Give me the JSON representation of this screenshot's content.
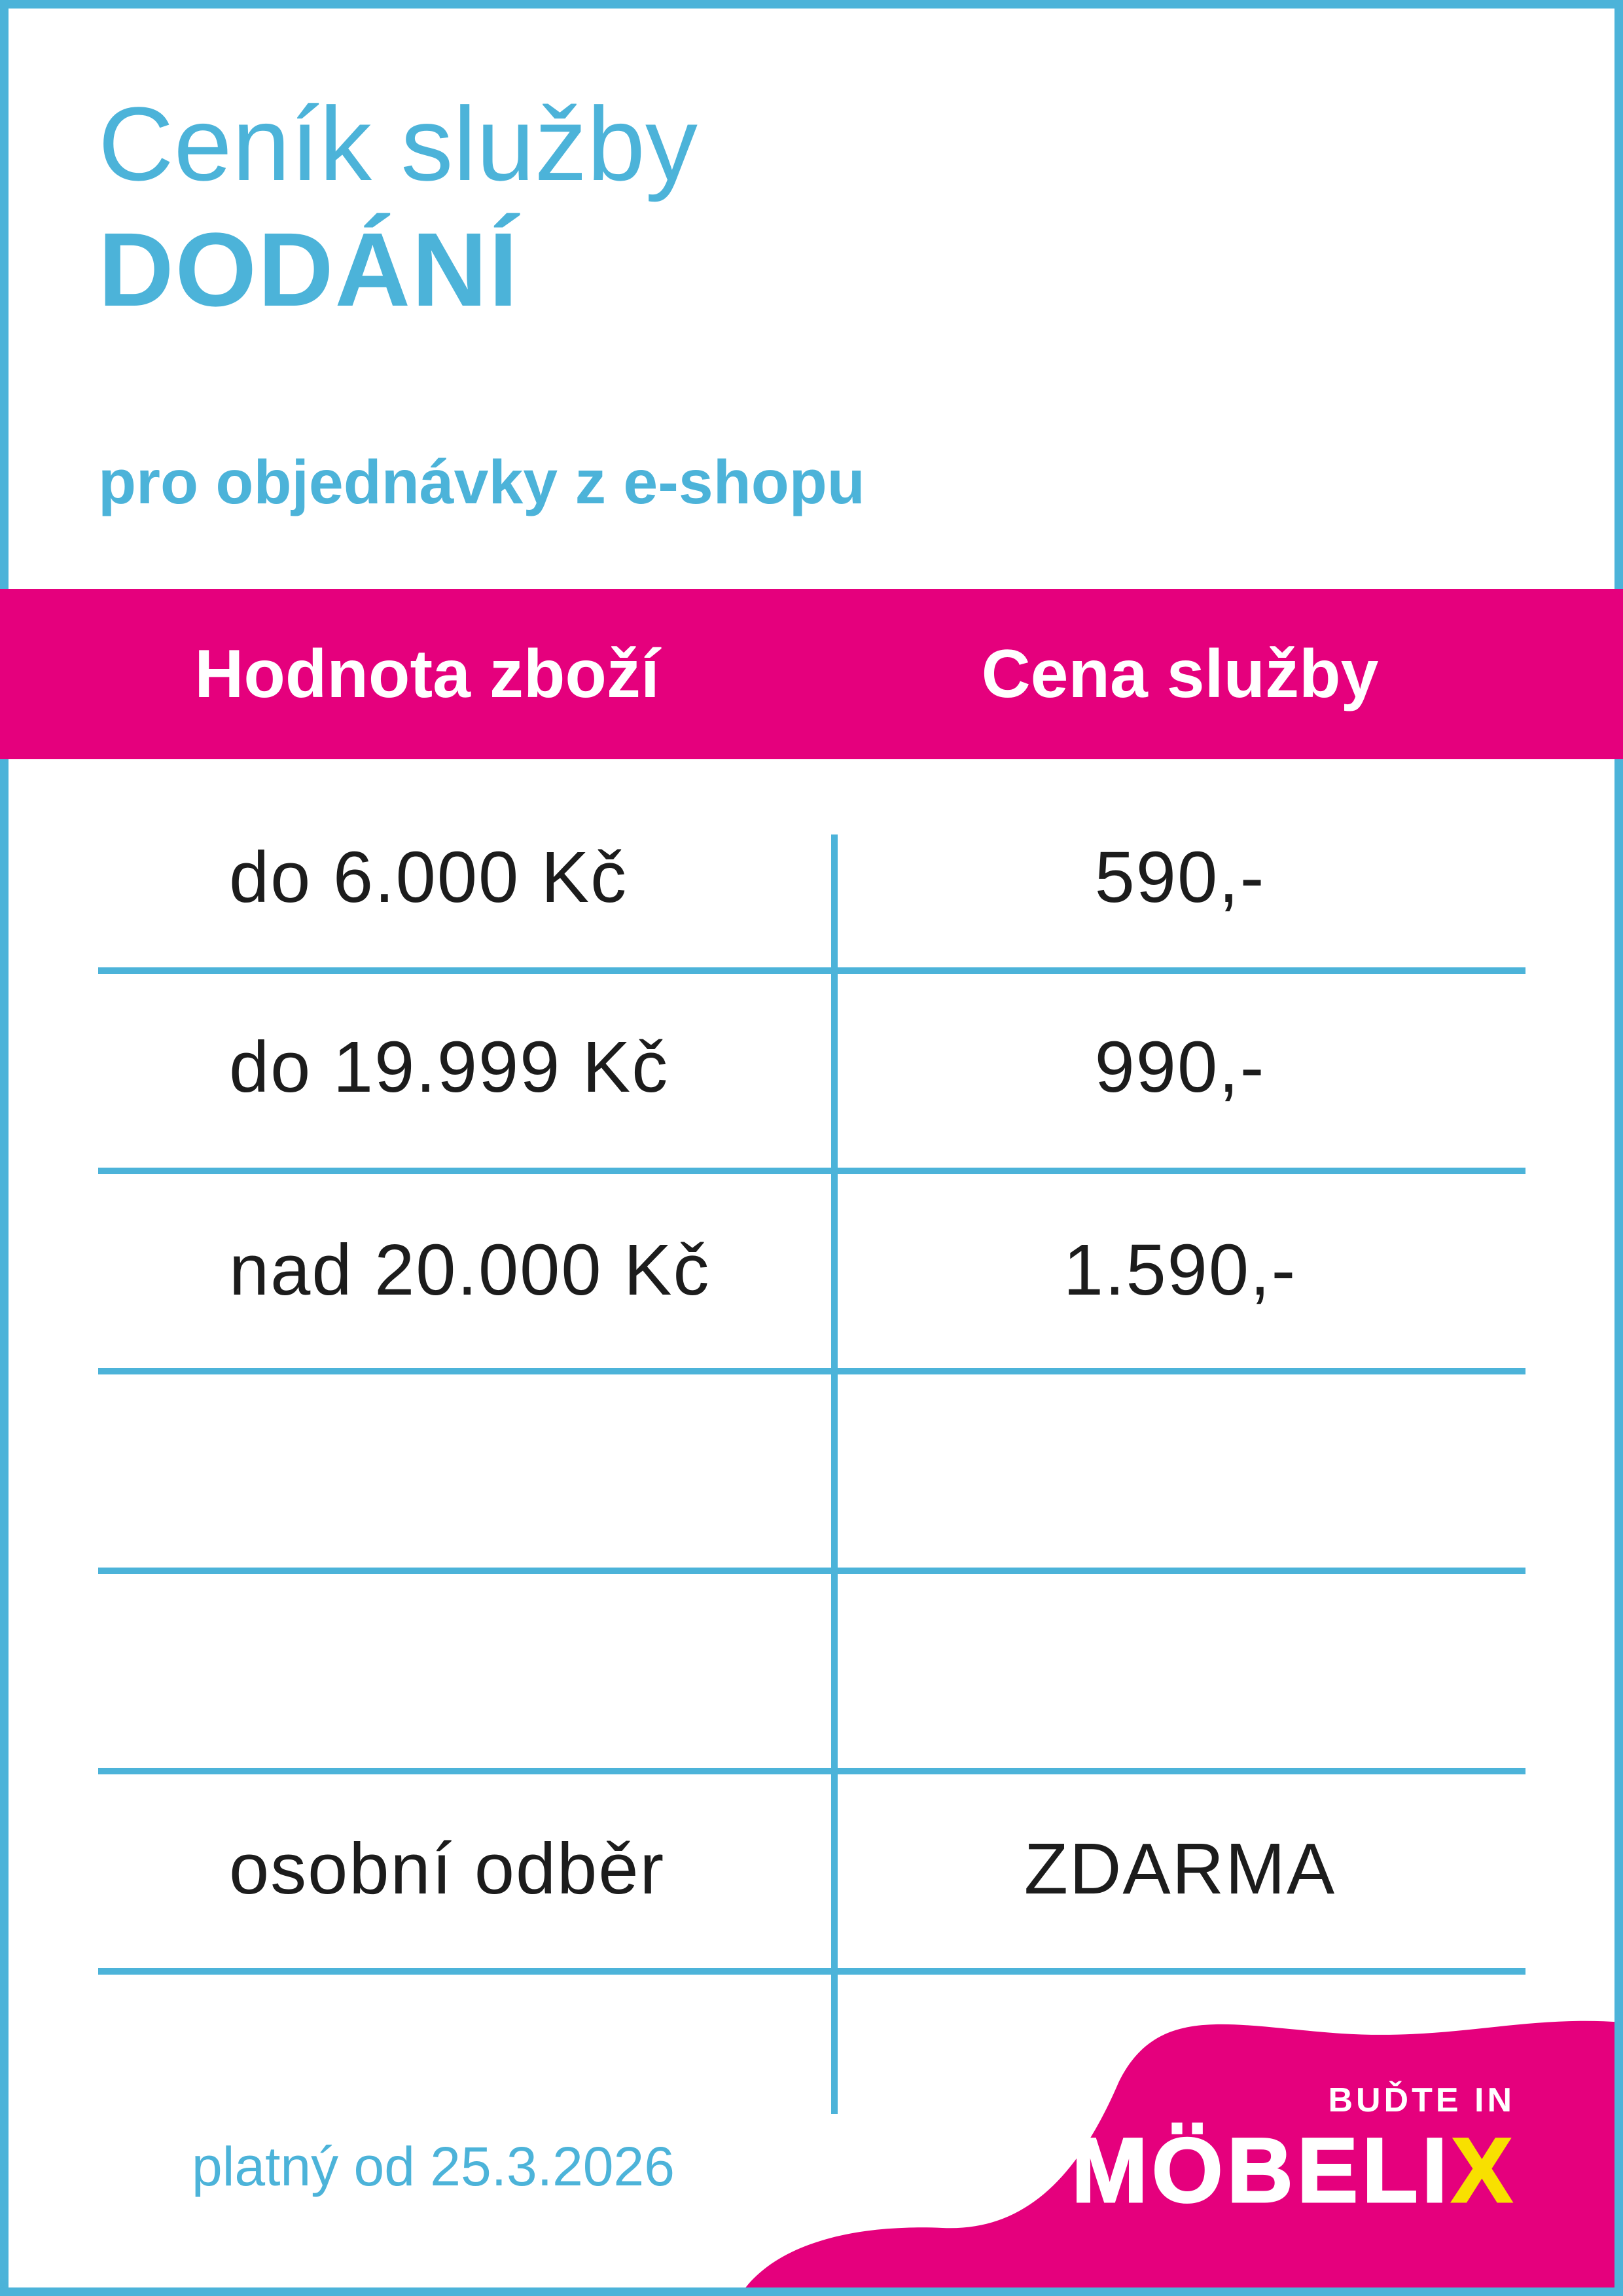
{
  "page": {
    "title_line1": "Ceník služby",
    "title_line2": "DODÁNÍ",
    "subtitle": "pro objednávky z e-shopu",
    "footer_note": "platný od 25.3.2026"
  },
  "table": {
    "header_value_column": "Hodnota zboží",
    "header_price_column": "Cena služby",
    "rows": [
      {
        "value": "do 6.000 Kč",
        "price": "590,-"
      },
      {
        "value": "do 19.999 Kč",
        "price": "990,-"
      },
      {
        "value": "nad 20.000 Kč",
        "price": "1.590,-"
      },
      {
        "value": "",
        "price": ""
      },
      {
        "value": "",
        "price": ""
      },
      {
        "value": "osobní odběr",
        "price": "ZDARMA"
      }
    ]
  },
  "logo": {
    "tagline": "BUĎTE IN",
    "brand_white": "MÖBELI",
    "brand_yellow": "X"
  },
  "colors": {
    "blue": "#4cb3d9",
    "pink": "#e5007d",
    "yellow": "#f8e000",
    "ink": "#1c1c1c"
  }
}
